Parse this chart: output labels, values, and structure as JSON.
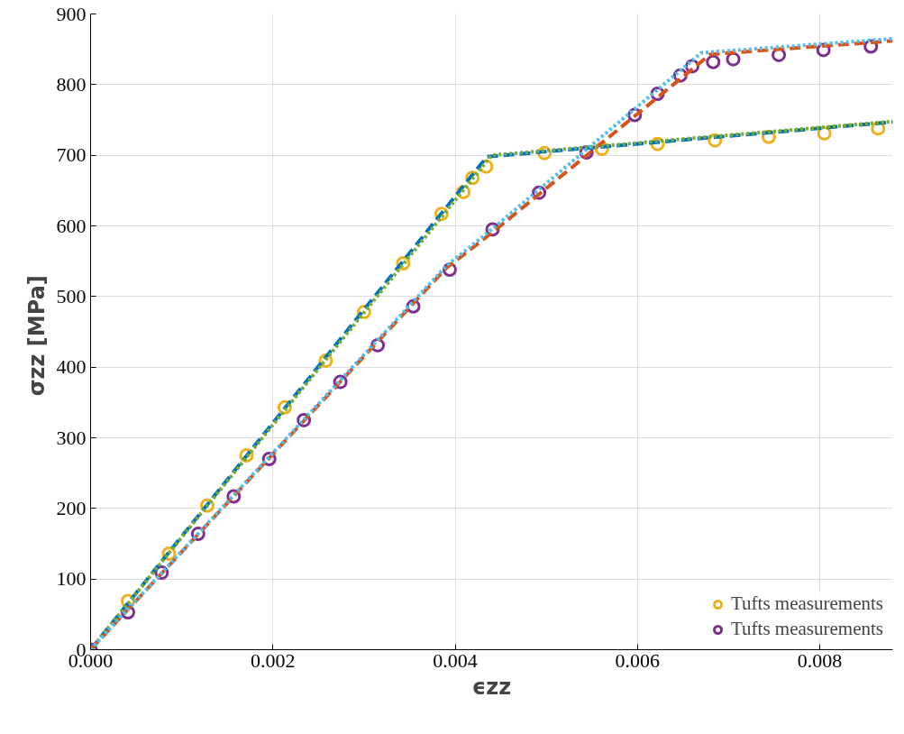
{
  "chart_data": {
    "type": "line",
    "xlabel": "ϵzz",
    "ylabel": "σzz  [MPa]",
    "xlim": [
      0,
      0.0088
    ],
    "ylim": [
      0,
      900
    ],
    "xticks": [
      {
        "value": 0,
        "label": "0.000"
      },
      {
        "value": 0.002,
        "label": "0.002"
      },
      {
        "value": 0.004,
        "label": "0.004"
      },
      {
        "value": 0.006,
        "label": "0.006"
      },
      {
        "value": 0.008,
        "label": "0.008"
      }
    ],
    "yticks": [
      0,
      100,
      200,
      300,
      400,
      500,
      600,
      700,
      800,
      900
    ],
    "grid": true,
    "legend": "bottom right",
    "series": [
      {
        "name": "Tufts measurements",
        "type": "scatter",
        "marker": "circle",
        "color": "#edb120",
        "x": [
          0.00041,
          0.00086,
          0.00128,
          0.00171,
          0.00213,
          0.00258,
          0.003,
          0.00343,
          0.00385,
          0.00409,
          0.00419,
          0.00434,
          0.00498,
          0.00561,
          0.00622,
          0.00685,
          0.00744,
          0.00805,
          0.00864
        ],
        "values": [
          69,
          136,
          204,
          275,
          343,
          409,
          478,
          547,
          617,
          648,
          668,
          684,
          703,
          709,
          716,
          721,
          726,
          731,
          738
        ]
      },
      {
        "name": "Tufts measurements",
        "type": "scatter",
        "marker": "circle",
        "color": "#7e2f8e",
        "x": [
          0,
          0.00041,
          0.00078,
          0.00118,
          0.00157,
          0.00196,
          0.00234,
          0.00274,
          0.00315,
          0.00354,
          0.00394,
          0.00441,
          0.00492,
          0.00544,
          0.00597,
          0.00622,
          0.00647,
          0.0066,
          0.00683,
          0.00705,
          0.00755,
          0.00804,
          0.00856
        ],
        "values": [
          0,
          53,
          109,
          164,
          217,
          270,
          325,
          379,
          431,
          486,
          538,
          595,
          647,
          704,
          757,
          787,
          813,
          826,
          832,
          836,
          842,
          849,
          854
        ]
      },
      {
        "line_style": "dashed",
        "marker": "none",
        "color": "#0072bd",
        "x": [
          0,
          0.00435,
          0.0088
        ],
        "values": [
          0,
          698,
          747
        ]
      },
      {
        "line_style": "dashed",
        "marker": "none",
        "color": "#d95319",
        "x": [
          0,
          0.0039,
          0.0044,
          0.0068,
          0.0088
        ],
        "values": [
          0,
          540,
          590,
          843,
          862
        ]
      },
      {
        "line_style": "dotted",
        "marker": "none",
        "color": "#77ac30",
        "x": [
          0,
          0.0044,
          0.0088
        ],
        "values": [
          0,
          700,
          748
        ]
      },
      {
        "line_style": "dotted",
        "marker": "none",
        "color": "#4dbeee",
        "x": [
          0,
          0.0039,
          0.0044,
          0.0067,
          0.0088
        ],
        "values": [
          0,
          543,
          595,
          845,
          865
        ]
      }
    ]
  }
}
